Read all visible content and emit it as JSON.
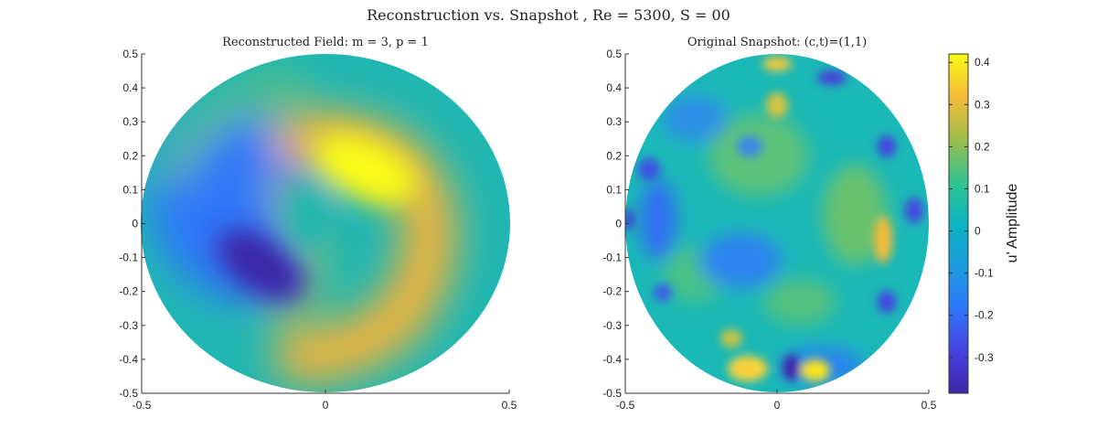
{
  "figure": {
    "title": "Reconstruction vs. Snapshot , Re = 5300, S = 00"
  },
  "chart_data": [
    {
      "type": "heatmap",
      "title": "Reconstructed Field: m = 3, p = 1",
      "xlim": [
        -0.5,
        0.5
      ],
      "ylim": [
        -0.5,
        0.5
      ],
      "x_ticks": [
        "-0.5",
        "0",
        "0.5"
      ],
      "y_ticks": [
        "0.5",
        "0.4",
        "0.3",
        "0.2",
        "0.1",
        "0",
        "-0.1",
        "-0.2",
        "-0.3",
        "-0.4",
        "-0.5"
      ],
      "domain": "circular, radius 0.5",
      "features": [
        {
          "x": 0.15,
          "y": 0.18,
          "value": 0.42,
          "label": "positive lobe"
        },
        {
          "x": 0.3,
          "y": -0.05,
          "value": 0.3,
          "label": "positive arc"
        },
        {
          "x": 0.05,
          "y": -0.35,
          "value": 0.25,
          "label": "positive arc"
        },
        {
          "x": -0.2,
          "y": -0.12,
          "value": -0.38,
          "label": "negative lobe"
        },
        {
          "x": -0.28,
          "y": 0.05,
          "value": -0.2,
          "label": "negative lobe"
        },
        {
          "x": -0.4,
          "y": 0.3,
          "value": 0.08,
          "label": "weak positive band"
        }
      ]
    },
    {
      "type": "heatmap",
      "title": "Original Snapshot: (c,t)=(1,1)",
      "xlim": [
        -0.5,
        0.5
      ],
      "ylim": [
        -0.5,
        0.5
      ],
      "x_ticks": [
        "-0.5",
        "0",
        "0.5"
      ],
      "y_ticks": [
        "0.5",
        "0.4",
        "0.3",
        "0.2",
        "0.1",
        "0",
        "-0.1",
        "-0.2",
        "-0.3",
        "-0.4",
        "-0.5"
      ],
      "domain": "circular, radius 0.5",
      "features": [
        {
          "x": -0.1,
          "y": -0.43,
          "value": 0.38,
          "label": "bottom peak"
        },
        {
          "x": 0.12,
          "y": -0.44,
          "value": 0.35,
          "label": "bottom peak"
        },
        {
          "x": 0.37,
          "y": -0.05,
          "value": 0.33,
          "label": "right peak"
        },
        {
          "x": 0.0,
          "y": 0.47,
          "value": 0.3,
          "label": "top peak"
        },
        {
          "x": 0.0,
          "y": 0.33,
          "value": 0.22,
          "label": "upper positive"
        },
        {
          "x": 0.05,
          "y": -0.43,
          "value": -0.35,
          "label": "bottom trough"
        },
        {
          "x": 0.17,
          "y": 0.42,
          "value": -0.3,
          "label": "top trough"
        },
        {
          "x": -0.12,
          "y": -0.12,
          "value": -0.18,
          "label": "central trough"
        },
        {
          "x": 0.38,
          "y": 0.05,
          "value": -0.22,
          "label": "right-edge trough"
        },
        {
          "x": -0.42,
          "y": 0.15,
          "value": -0.25,
          "label": "left-edge trough"
        }
      ]
    }
  ],
  "colorbar": {
    "label": "u' Amplitude",
    "range": [
      -0.385,
      0.42
    ],
    "ticks": [
      "0.4",
      "0.3",
      "0.2",
      "0.1",
      "0",
      "-0.1",
      "-0.2",
      "-0.3"
    ],
    "colormap": "parula"
  }
}
